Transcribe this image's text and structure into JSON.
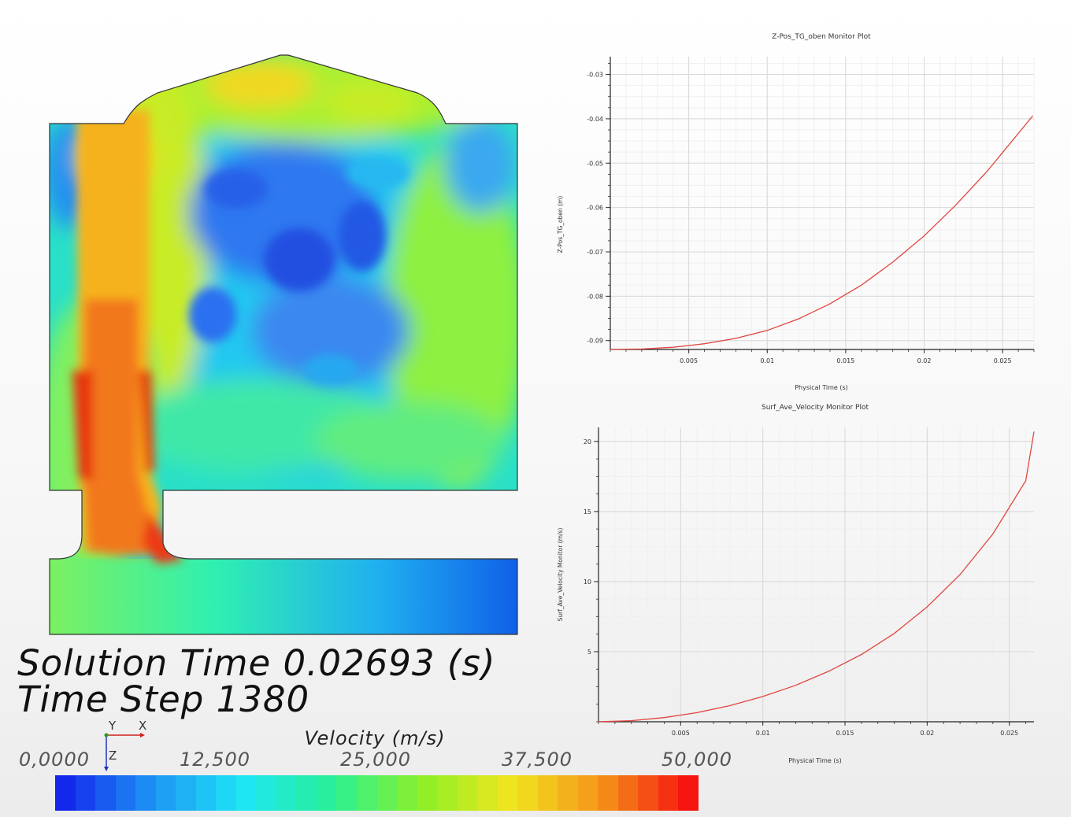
{
  "simulation": {
    "solution_time_label": "Solution Time 0.02693 (s)",
    "time_step_label": "Time Step 1380"
  },
  "colorbar": {
    "title": "Velocity (m/s)",
    "tick_labels": [
      "0,0000",
      "12,500",
      "25,000",
      "37,500",
      "50,000"
    ],
    "min": 0,
    "max": 50
  },
  "triad": {
    "y_label": "Y",
    "x_label": "X",
    "z_label": "Z"
  },
  "chart_data": [
    {
      "type": "line",
      "title": "Z-Pos_TG_oben Monitor Plot",
      "xlabel": "Physical Time (s)",
      "ylabel": "Z-Pos_TG_oben (m)",
      "xlim": [
        0,
        0.027
      ],
      "ylim": [
        -0.092,
        -0.026
      ],
      "xticks": [
        0.005,
        0.01,
        0.015,
        0.02,
        0.025
      ],
      "xtick_labels": [
        "0.005",
        "0.01",
        "0.015",
        "0.02",
        "0.025"
      ],
      "yticks": [
        -0.03,
        -0.04,
        -0.05,
        -0.06,
        -0.07,
        -0.08,
        -0.09
      ],
      "ytick_labels": [
        "-0.03",
        "-0.04",
        "-0.05",
        "-0.06",
        "-0.07",
        "-0.08",
        "-0.09"
      ],
      "series": [
        {
          "name": "Z-Pos_TG_oben",
          "color": "#e0463e",
          "x": [
            0,
            0.002,
            0.004,
            0.006,
            0.008,
            0.01,
            0.012,
            0.014,
            0.016,
            0.018,
            0.02,
            0.022,
            0.024,
            0.026,
            0.02693
          ],
          "y": [
            -0.092,
            -0.0919,
            -0.0915,
            -0.0907,
            -0.0895,
            -0.0877,
            -0.0851,
            -0.0817,
            -0.0775,
            -0.0723,
            -0.0664,
            -0.0595,
            -0.0519,
            -0.0433,
            -0.0393
          ]
        }
      ]
    },
    {
      "type": "line",
      "title": "Surf_Ave_Velocity Monitor Plot",
      "xlabel": "Physical Time (s)",
      "ylabel": "Surf_Ave_Velocity Monitor (m/s)",
      "xlim": [
        0,
        0.0265
      ],
      "ylim": [
        0,
        21
      ],
      "xticks": [
        0.005,
        0.01,
        0.015,
        0.02,
        0.025
      ],
      "xtick_labels": [
        "0.005",
        "0.01",
        "0.015",
        "0.02",
        "0.025"
      ],
      "yticks": [
        5,
        10,
        15,
        20
      ],
      "ytick_labels": [
        "5",
        "10",
        "15",
        "20"
      ],
      "series": [
        {
          "name": "Surf_Ave_Velocity",
          "color": "#e0463e",
          "x": [
            0,
            0.002,
            0.004,
            0.006,
            0.008,
            0.01,
            0.012,
            0.014,
            0.016,
            0.018,
            0.02,
            0.022,
            0.024,
            0.026,
            0.0265
          ],
          "y": [
            0,
            0.08,
            0.3,
            0.65,
            1.15,
            1.8,
            2.6,
            3.6,
            4.8,
            6.3,
            8.2,
            10.5,
            13.4,
            17.2,
            20.7
          ]
        }
      ]
    }
  ]
}
